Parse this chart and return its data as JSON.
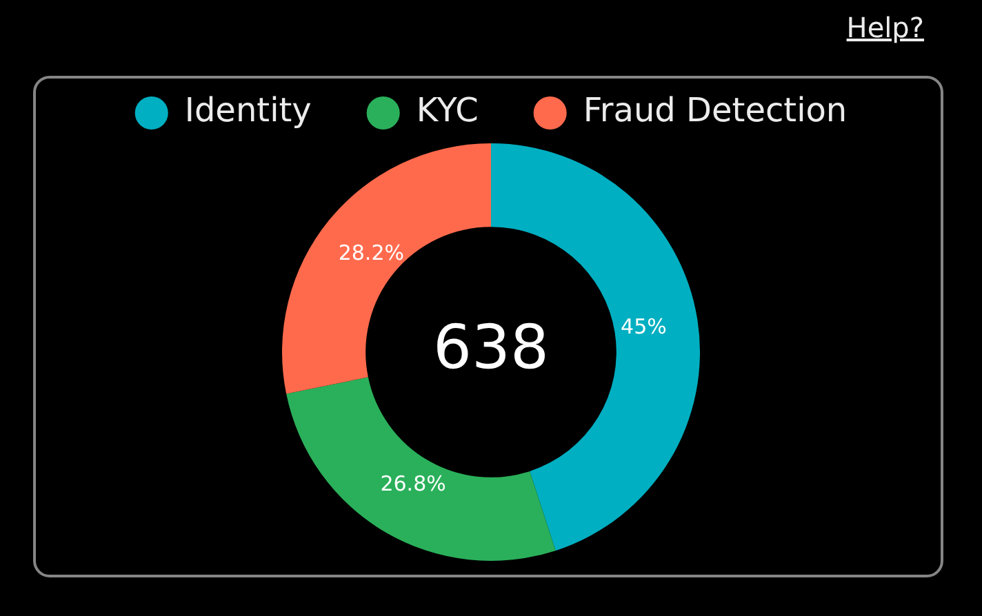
{
  "chart_data": {
    "type": "donut",
    "categories": [
      "Identity",
      "KYC",
      "Fraud Detection"
    ],
    "values": [
      45,
      26.8,
      28.2
    ],
    "colors": [
      "#00afc1",
      "#2ab05a",
      "#ff6a4d"
    ],
    "value_labels": [
      "45%",
      "26.8%",
      "28.2%"
    ],
    "legend": "top",
    "annotations": [
      "638",
      "Help?"
    ]
  }
}
